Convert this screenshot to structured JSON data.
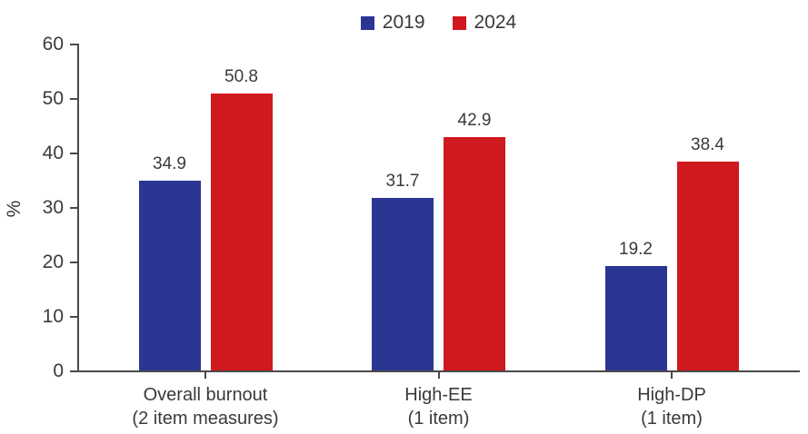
{
  "chart_data": {
    "type": "bar",
    "title": "",
    "xlabel": "",
    "ylabel": "%",
    "ylim": [
      0,
      60
    ],
    "yticks": [
      0,
      10,
      20,
      30,
      40,
      50,
      60
    ],
    "grid": false,
    "legend_position": "top-center",
    "categories": [
      {
        "line1": "Overall burnout",
        "line2": "(2 item measures)"
      },
      {
        "line1": "High-EE",
        "line2": "(1 item)"
      },
      {
        "line1": "High-DP",
        "line2": "(1 item)"
      }
    ],
    "series": [
      {
        "name": "2019",
        "color": "#2b3693",
        "values": [
          34.9,
          31.7,
          19.2
        ]
      },
      {
        "name": "2024",
        "color": "#d0181f",
        "values": [
          50.8,
          42.9,
          38.4
        ]
      }
    ],
    "value_labels": {
      "2019": [
        "34.9",
        "31.7",
        "19.2"
      ],
      "2024": [
        "50.8",
        "42.9",
        "38.4"
      ]
    }
  },
  "colors": {
    "axis": "#4a4a4a",
    "text": "#3a3a3a",
    "background": "#ffffff"
  }
}
